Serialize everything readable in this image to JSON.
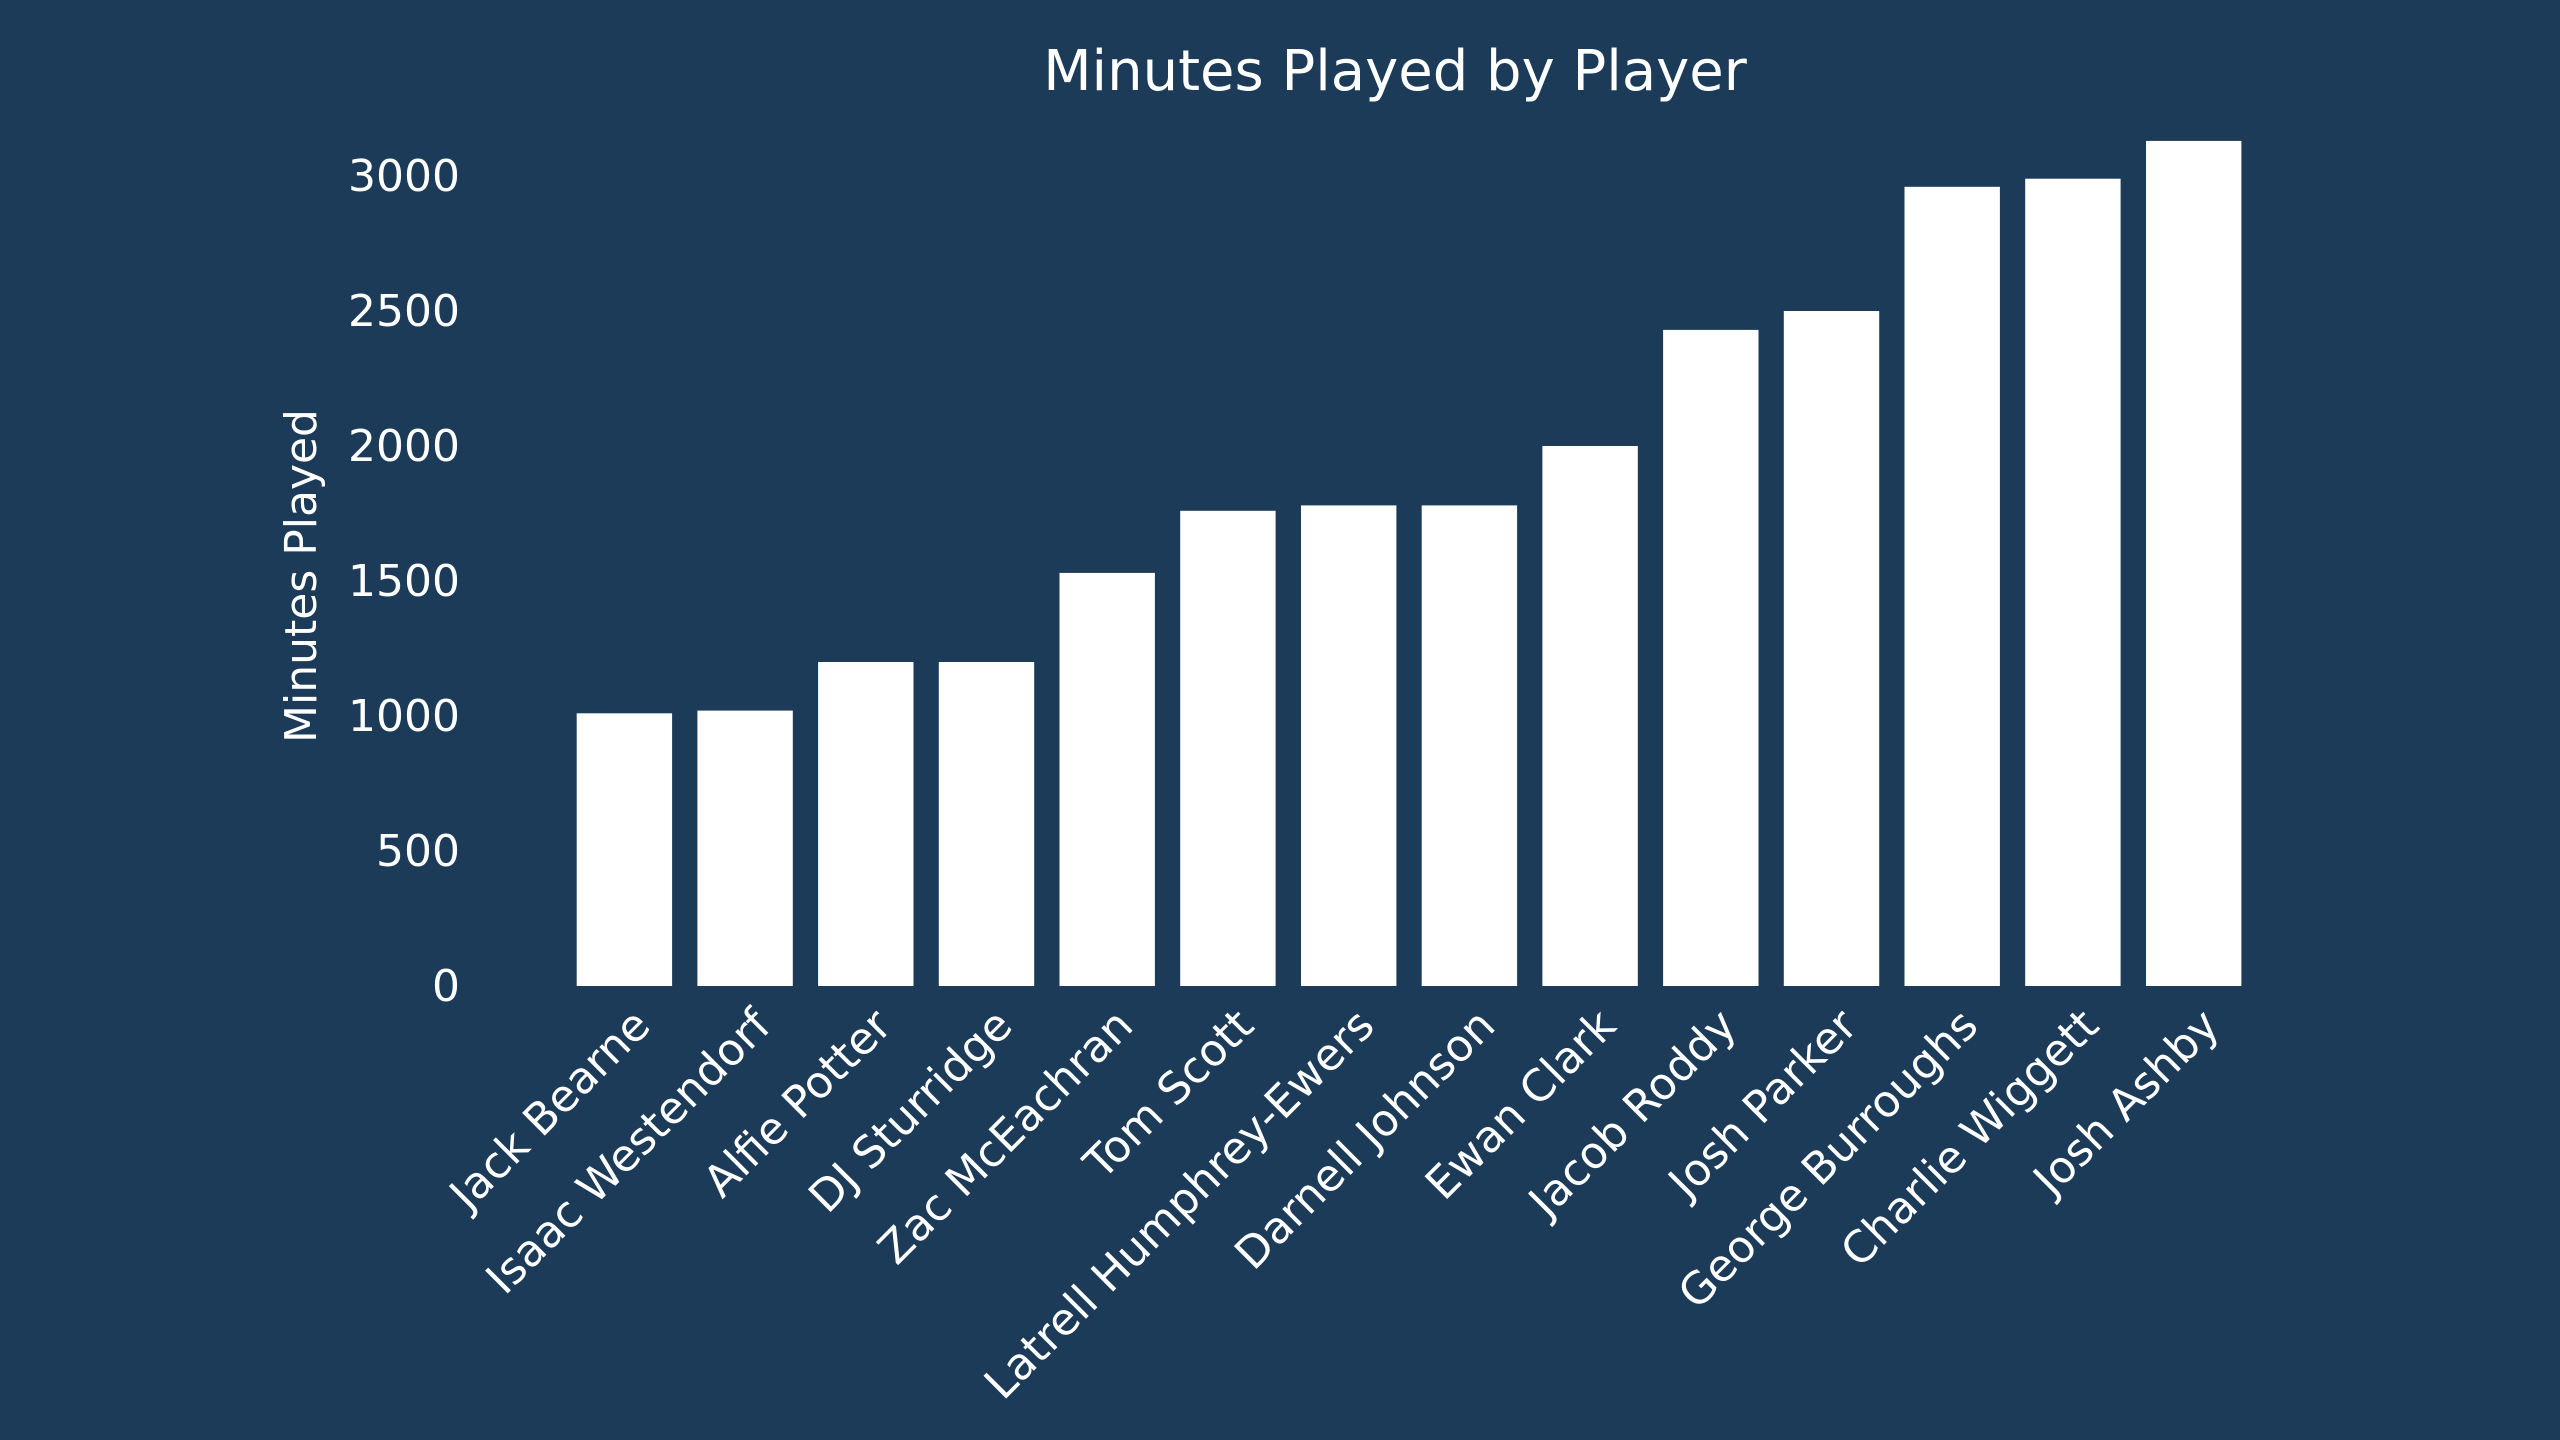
{
  "colors": {
    "background": "#1b3b58",
    "bar": "#ffffff",
    "text": "#ffffff"
  },
  "chart_data": {
    "type": "bar",
    "title": "Minutes Played by Player",
    "xlabel": "",
    "ylabel": "Minutes Played",
    "ylim": [
      0,
      3200
    ],
    "yticks": [
      0,
      500,
      1000,
      1500,
      2000,
      2500,
      3000
    ],
    "grid": false,
    "legend": "none",
    "categories": [
      "Jack Bearne",
      "Isaac Westendorf",
      "Alfie Potter",
      "DJ Sturridge",
      "Zac McEachran",
      "Tom Scott",
      "Latrell Humphrey-Ewers",
      "Darnell Johnson",
      "Ewan Clark",
      "Jacob Roddy",
      "Josh Parker",
      "George Burroughs",
      "Charlie Wiggett",
      "Josh Ashby"
    ],
    "values": [
      1010,
      1020,
      1200,
      1200,
      1530,
      1760,
      1780,
      1780,
      2000,
      2430,
      2500,
      2960,
      2990,
      3130
    ]
  }
}
